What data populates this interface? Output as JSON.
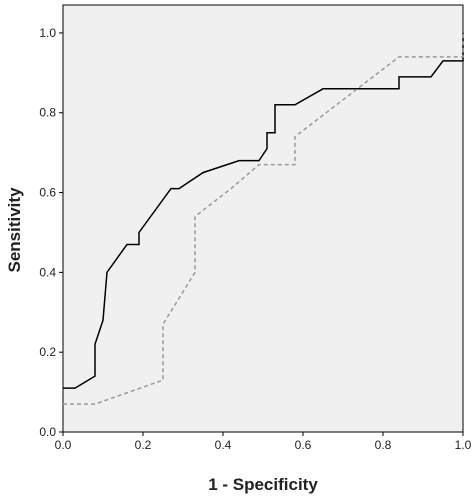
{
  "chart_data": {
    "type": "line",
    "xlabel": "1 - Specificity",
    "ylabel": "Sensitivity",
    "xlim": [
      0,
      1
    ],
    "ylim": [
      0,
      1.07
    ],
    "xticks": [
      {
        "value": 0,
        "label": "0.0"
      },
      0.2,
      0.4,
      0.6,
      0.8,
      {
        "value": 1,
        "label": "1.0"
      }
    ],
    "yticks": [
      {
        "value": 0,
        "label": "0.0"
      },
      0.2,
      0.4,
      0.6,
      0.8,
      {
        "value": 1,
        "label": "1.0"
      }
    ],
    "background": "#f0f0f0",
    "series": [
      {
        "color": "#000000",
        "style": "solid",
        "x": [
          0,
          0.03,
          0.08,
          0.08,
          0.1,
          0.11,
          0.16,
          0.19,
          0.19,
          0.27,
          0.29,
          0.35,
          0.44,
          0.49,
          0.51,
          0.51,
          0.53,
          0.53,
          0.58,
          0.65,
          0.84,
          0.84,
          0.92,
          0.95,
          1,
          1
        ],
        "values": [
          0.11,
          0.11,
          0.14,
          0.22,
          0.28,
          0.4,
          0.47,
          0.47,
          0.5,
          0.61,
          0.61,
          0.65,
          0.68,
          0.68,
          0.71,
          0.75,
          0.75,
          0.82,
          0.82,
          0.86,
          0.86,
          0.89,
          0.89,
          0.93,
          0.93,
          1
        ]
      },
      {
        "color": "#999999",
        "style": "dashed",
        "x": [
          0,
          0.08,
          0.25,
          0.25,
          0.33,
          0.33,
          0.42,
          0.49,
          0.58,
          0.58,
          0.84,
          1,
          1
        ],
        "values": [
          0.07,
          0.07,
          0.13,
          0.27,
          0.4,
          0.54,
          0.61,
          0.67,
          0.67,
          0.74,
          0.94,
          0.94,
          1
        ]
      }
    ]
  }
}
